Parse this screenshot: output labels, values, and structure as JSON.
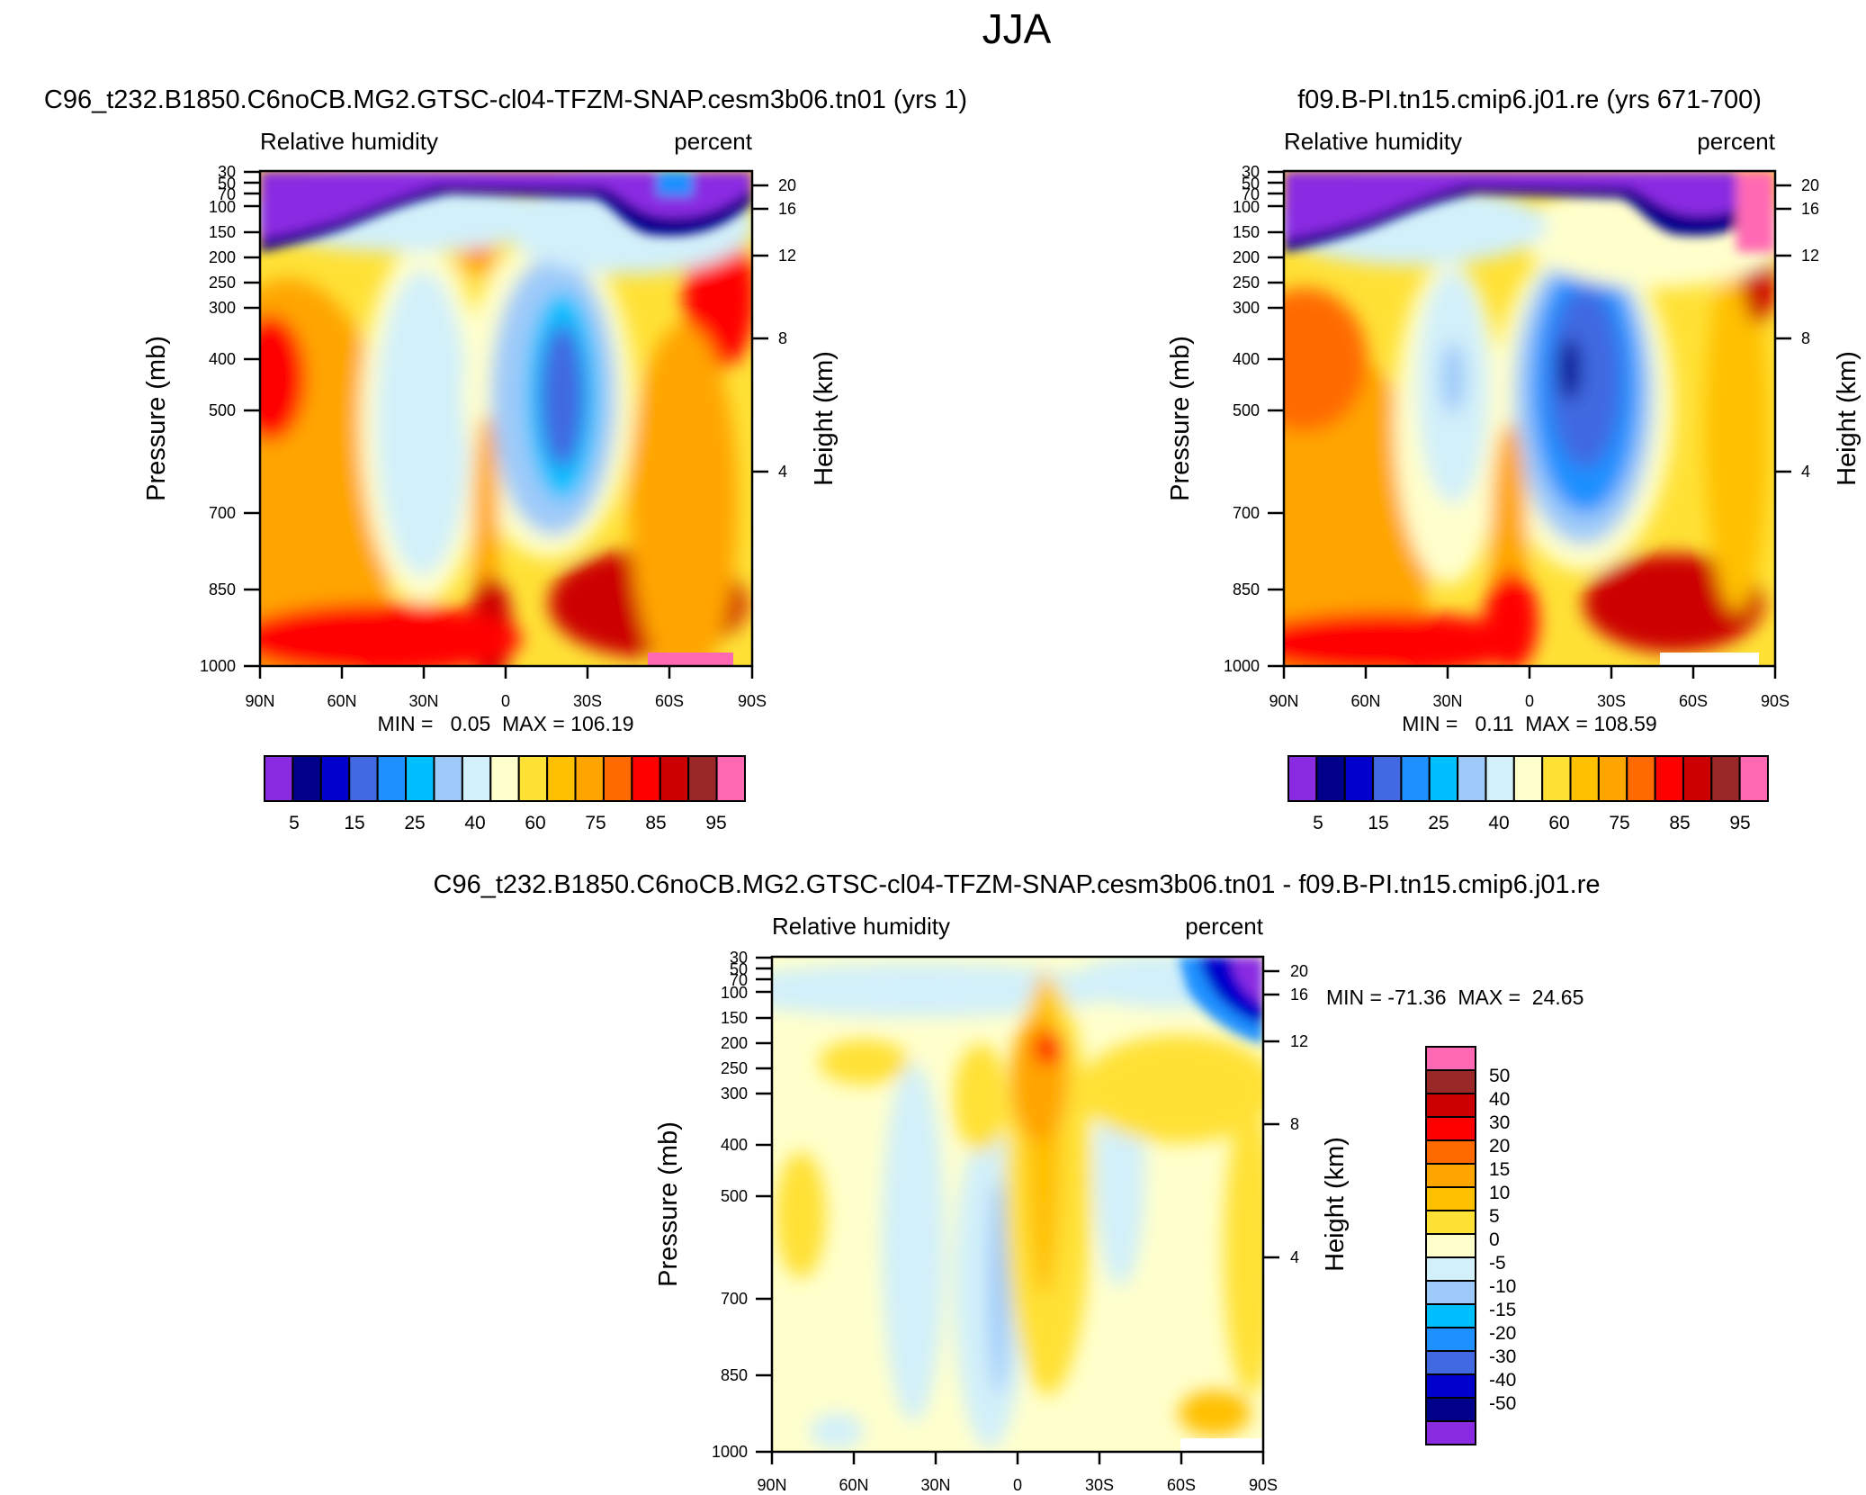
{
  "figure_title": "JJA",
  "colors": {
    "rh_levels": [
      "#8A2BE2",
      "#00008B",
      "#0000CD",
      "#4169E1",
      "#1E90FF",
      "#00BFFF",
      "#9ECAF9",
      "#D2F0FA",
      "#FFFFCC",
      "#FFE135",
      "#FFC000",
      "#FFA500",
      "#FF6A00",
      "#FF0000",
      "#CC0000",
      "#9B2828",
      "#FF69B4"
    ],
    "diff_levels": [
      "#8A2BE2",
      "#00008B",
      "#0000CD",
      "#4169E1",
      "#1E90FF",
      "#00BFFF",
      "#9ECAF9",
      "#D2F0FA",
      "#FFFFCC",
      "#FFE135",
      "#FFC000",
      "#FFA500",
      "#FF6A00",
      "#FF0000",
      "#CC0000",
      "#9B2828",
      "#FF69B4"
    ]
  },
  "chart_data": [
    {
      "type": "heatmap",
      "title": "C96_t232.B1850.C6noCB.MG2.GTSC-cl04-TFZM-SNAP.cesm3b06.tn01 (yrs 1)",
      "left_label": "Relative humidity",
      "right_label": "percent",
      "ylabel": "Pressure (mb)",
      "ylabel_right": "Height (km)",
      "xlabel": "",
      "x_ticks": [
        "90N",
        "60N",
        "30N",
        "0",
        "30S",
        "60S",
        "90S"
      ],
      "y_ticks": [
        30,
        50,
        70,
        100,
        150,
        200,
        250,
        300,
        400,
        500,
        700,
        850,
        1000
      ],
      "y_right_ticks": [
        20,
        16,
        12,
        8,
        4
      ],
      "ylim": [
        30,
        1000
      ],
      "xlim": [
        90,
        -90
      ],
      "min_max": "MIN =   0.05  MAX = 106.19",
      "colorbar_labels": [
        "5",
        "15",
        "25",
        "40",
        "60",
        "75",
        "85",
        "95"
      ],
      "levels": [
        5,
        10,
        15,
        20,
        25,
        30,
        40,
        50,
        60,
        70,
        75,
        80,
        85,
        90,
        95,
        100
      ]
    },
    {
      "type": "heatmap",
      "title": "f09.B-PI.tn15.cmip6.j01.re (yrs 671-700)",
      "left_label": "Relative humidity",
      "right_label": "percent",
      "ylabel": "Pressure (mb)",
      "ylabel_right": "Height (km)",
      "xlabel": "",
      "x_ticks": [
        "90N",
        "60N",
        "30N",
        "0",
        "30S",
        "60S",
        "90S"
      ],
      "y_ticks": [
        30,
        50,
        70,
        100,
        150,
        200,
        250,
        300,
        400,
        500,
        700,
        850,
        1000
      ],
      "y_right_ticks": [
        20,
        16,
        12,
        8,
        4
      ],
      "ylim": [
        30,
        1000
      ],
      "xlim": [
        90,
        -90
      ],
      "min_max": "MIN =   0.11  MAX = 108.59",
      "colorbar_labels": [
        "5",
        "15",
        "25",
        "40",
        "60",
        "75",
        "85",
        "95"
      ],
      "levels": [
        5,
        10,
        15,
        20,
        25,
        30,
        40,
        50,
        60,
        70,
        75,
        80,
        85,
        90,
        95,
        100
      ]
    },
    {
      "type": "heatmap",
      "title": "C96_t232.B1850.C6noCB.MG2.GTSC-cl04-TFZM-SNAP.cesm3b06.tn01 - f09.B-PI.tn15.cmip6.j01.re",
      "left_label": "Relative humidity",
      "right_label": "percent",
      "ylabel": "Pressure (mb)",
      "ylabel_right": "Height (km)",
      "xlabel": "",
      "x_ticks": [
        "90N",
        "60N",
        "30N",
        "0",
        "30S",
        "60S",
        "90S"
      ],
      "y_ticks": [
        30,
        50,
        70,
        100,
        150,
        200,
        250,
        300,
        400,
        500,
        700,
        850,
        1000
      ],
      "y_right_ticks": [
        20,
        16,
        12,
        8,
        4
      ],
      "ylim": [
        30,
        1000
      ],
      "xlim": [
        90,
        -90
      ],
      "min_max": "MIN = -71.36  MAX =  24.65",
      "colorbar_labels": [
        "50",
        "40",
        "30",
        "20",
        "15",
        "10",
        "5",
        "0",
        "-5",
        "-10",
        "-15",
        "-20",
        "-30",
        "-40",
        "-50"
      ],
      "levels": [
        -50,
        -40,
        -30,
        -20,
        -15,
        -10,
        -5,
        0,
        5,
        10,
        15,
        20,
        30,
        40,
        50
      ]
    }
  ]
}
